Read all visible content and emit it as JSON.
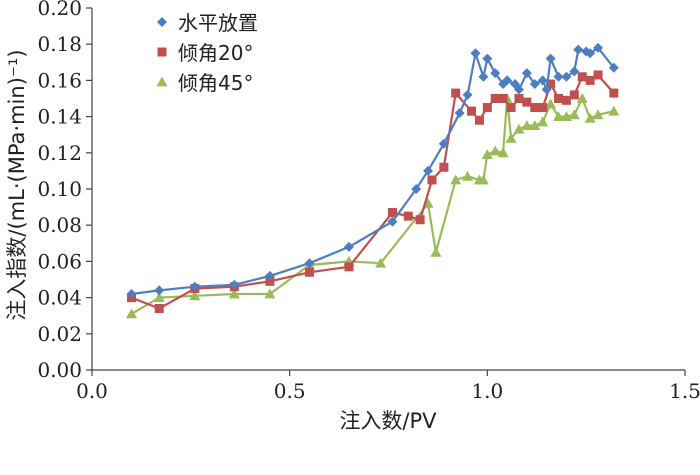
{
  "chart_data": {
    "type": "line",
    "title": "",
    "xlabel": "注入数/PV",
    "ylabel": "注入指数/(mL·(MPa·min)⁻¹)",
    "xlim": [
      0.0,
      1.5
    ],
    "ylim": [
      0.0,
      0.2
    ],
    "x_ticks": [
      "0.0",
      "0.5",
      "1.0",
      "1.5"
    ],
    "y_ticks": [
      "0.00",
      "0.02",
      "0.04",
      "0.06",
      "0.08",
      "0.10",
      "0.12",
      "0.14",
      "0.16",
      "0.18",
      "0.20"
    ],
    "grid": false,
    "legend_position": "top-left",
    "series": [
      {
        "name": "水平放置",
        "color": "#4f7ec0",
        "marker": "diamond",
        "points": [
          [
            0.1,
            0.042
          ],
          [
            0.17,
            0.044
          ],
          [
            0.26,
            0.046
          ],
          [
            0.36,
            0.047
          ],
          [
            0.45,
            0.052
          ],
          [
            0.55,
            0.059
          ],
          [
            0.65,
            0.068
          ],
          [
            0.76,
            0.082
          ],
          [
            0.82,
            0.1
          ],
          [
            0.85,
            0.11
          ],
          [
            0.89,
            0.125
          ],
          [
            0.93,
            0.142
          ],
          [
            0.95,
            0.152
          ],
          [
            0.97,
            0.175
          ],
          [
            0.99,
            0.162
          ],
          [
            1.0,
            0.172
          ],
          [
            1.02,
            0.164
          ],
          [
            1.04,
            0.158
          ],
          [
            1.05,
            0.16
          ],
          [
            1.07,
            0.158
          ],
          [
            1.08,
            0.155
          ],
          [
            1.1,
            0.164
          ],
          [
            1.12,
            0.158
          ],
          [
            1.14,
            0.16
          ],
          [
            1.15,
            0.155
          ],
          [
            1.16,
            0.172
          ],
          [
            1.18,
            0.162
          ],
          [
            1.2,
            0.162
          ],
          [
            1.22,
            0.165
          ],
          [
            1.23,
            0.177
          ],
          [
            1.25,
            0.176
          ],
          [
            1.26,
            0.175
          ],
          [
            1.28,
            0.178
          ],
          [
            1.32,
            0.167
          ]
        ]
      },
      {
        "name": "倾角20°",
        "color": "#c0504d",
        "marker": "square",
        "points": [
          [
            0.1,
            0.04
          ],
          [
            0.17,
            0.034
          ],
          [
            0.26,
            0.045
          ],
          [
            0.36,
            0.046
          ],
          [
            0.45,
            0.049
          ],
          [
            0.55,
            0.054
          ],
          [
            0.65,
            0.057
          ],
          [
            0.76,
            0.087
          ],
          [
            0.8,
            0.085
          ],
          [
            0.83,
            0.083
          ],
          [
            0.86,
            0.105
          ],
          [
            0.89,
            0.112
          ],
          [
            0.92,
            0.153
          ],
          [
            0.96,
            0.143
          ],
          [
            0.98,
            0.138
          ],
          [
            1.0,
            0.145
          ],
          [
            1.02,
            0.15
          ],
          [
            1.04,
            0.15
          ],
          [
            1.06,
            0.145
          ],
          [
            1.08,
            0.15
          ],
          [
            1.1,
            0.148
          ],
          [
            1.12,
            0.145
          ],
          [
            1.14,
            0.145
          ],
          [
            1.16,
            0.158
          ],
          [
            1.18,
            0.15
          ],
          [
            1.2,
            0.149
          ],
          [
            1.22,
            0.152
          ],
          [
            1.24,
            0.162
          ],
          [
            1.26,
            0.16
          ],
          [
            1.28,
            0.163
          ],
          [
            1.32,
            0.153
          ]
        ]
      },
      {
        "name": "倾角45°",
        "color": "#9bbb59",
        "marker": "triangle",
        "points": [
          [
            0.1,
            0.031
          ],
          [
            0.17,
            0.04
          ],
          [
            0.26,
            0.041
          ],
          [
            0.36,
            0.042
          ],
          [
            0.45,
            0.042
          ],
          [
            0.55,
            0.058
          ],
          [
            0.65,
            0.06
          ],
          [
            0.73,
            0.059
          ],
          [
            0.85,
            0.092
          ],
          [
            0.87,
            0.065
          ],
          [
            0.92,
            0.105
          ],
          [
            0.95,
            0.107
          ],
          [
            0.98,
            0.105
          ],
          [
            0.99,
            0.105
          ],
          [
            1.0,
            0.119
          ],
          [
            1.02,
            0.121
          ],
          [
            1.04,
            0.12
          ],
          [
            1.05,
            0.15
          ],
          [
            1.06,
            0.128
          ],
          [
            1.08,
            0.133
          ],
          [
            1.1,
            0.135
          ],
          [
            1.12,
            0.135
          ],
          [
            1.14,
            0.137
          ],
          [
            1.16,
            0.147
          ],
          [
            1.18,
            0.14
          ],
          [
            1.2,
            0.14
          ],
          [
            1.22,
            0.141
          ],
          [
            1.24,
            0.15
          ],
          [
            1.26,
            0.139
          ],
          [
            1.28,
            0.141
          ],
          [
            1.32,
            0.143
          ]
        ]
      }
    ]
  }
}
